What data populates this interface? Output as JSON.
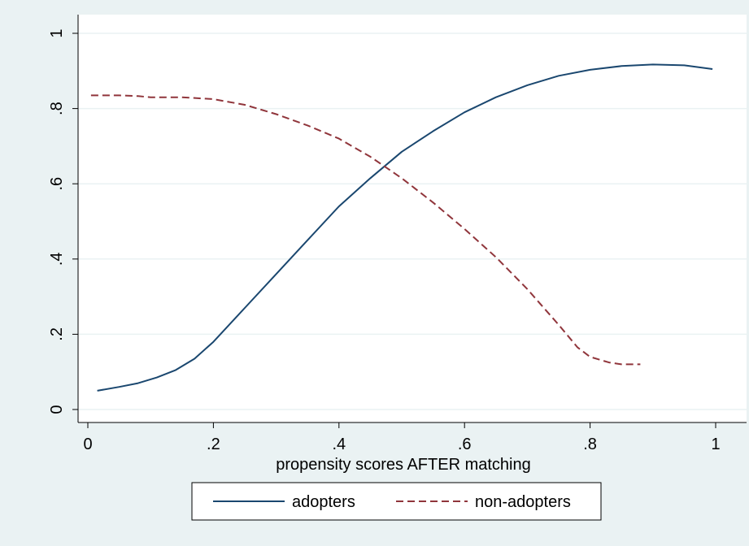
{
  "chart_data": {
    "type": "line",
    "title": "",
    "xlabel": "propensity scores AFTER matching",
    "ylabel": "",
    "xlim": [
      0,
      1
    ],
    "ylim": [
      0,
      1
    ],
    "x_ticks": [
      0,
      0.2,
      0.4,
      0.6,
      0.8,
      1
    ],
    "x_tick_labels": [
      "0",
      ".2",
      ".4",
      ".6",
      ".8",
      "1"
    ],
    "y_ticks": [
      0,
      0.2,
      0.4,
      0.6,
      0.8,
      1
    ],
    "y_tick_labels": [
      "0",
      ".2",
      ".4",
      ".6",
      ".8",
      "1"
    ],
    "grid": "horizontal",
    "legend_position": "bottom",
    "series": [
      {
        "name": "adopters",
        "color": "#1a476f",
        "style": "solid",
        "points": [
          [
            0.015,
            0.05
          ],
          [
            0.05,
            0.06
          ],
          [
            0.08,
            0.07
          ],
          [
            0.11,
            0.085
          ],
          [
            0.14,
            0.105
          ],
          [
            0.17,
            0.135
          ],
          [
            0.2,
            0.18
          ],
          [
            0.25,
            0.27
          ],
          [
            0.3,
            0.36
          ],
          [
            0.35,
            0.45
          ],
          [
            0.4,
            0.54
          ],
          [
            0.45,
            0.615
          ],
          [
            0.5,
            0.685
          ],
          [
            0.55,
            0.74
          ],
          [
            0.6,
            0.79
          ],
          [
            0.65,
            0.83
          ],
          [
            0.7,
            0.862
          ],
          [
            0.75,
            0.887
          ],
          [
            0.8,
            0.903
          ],
          [
            0.85,
            0.913
          ],
          [
            0.9,
            0.917
          ],
          [
            0.95,
            0.915
          ],
          [
            0.995,
            0.905
          ]
        ]
      },
      {
        "name": "non-adopters",
        "color": "#90353b",
        "style": "dashed",
        "points": [
          [
            0.005,
            0.835
          ],
          [
            0.05,
            0.835
          ],
          [
            0.08,
            0.833
          ],
          [
            0.1,
            0.83
          ],
          [
            0.15,
            0.83
          ],
          [
            0.2,
            0.825
          ],
          [
            0.25,
            0.81
          ],
          [
            0.3,
            0.785
          ],
          [
            0.35,
            0.755
          ],
          [
            0.4,
            0.72
          ],
          [
            0.45,
            0.672
          ],
          [
            0.5,
            0.615
          ],
          [
            0.55,
            0.55
          ],
          [
            0.6,
            0.48
          ],
          [
            0.65,
            0.405
          ],
          [
            0.7,
            0.32
          ],
          [
            0.75,
            0.225
          ],
          [
            0.78,
            0.165
          ],
          [
            0.8,
            0.14
          ],
          [
            0.83,
            0.125
          ],
          [
            0.85,
            0.12
          ],
          [
            0.88,
            0.12
          ]
        ]
      }
    ]
  }
}
